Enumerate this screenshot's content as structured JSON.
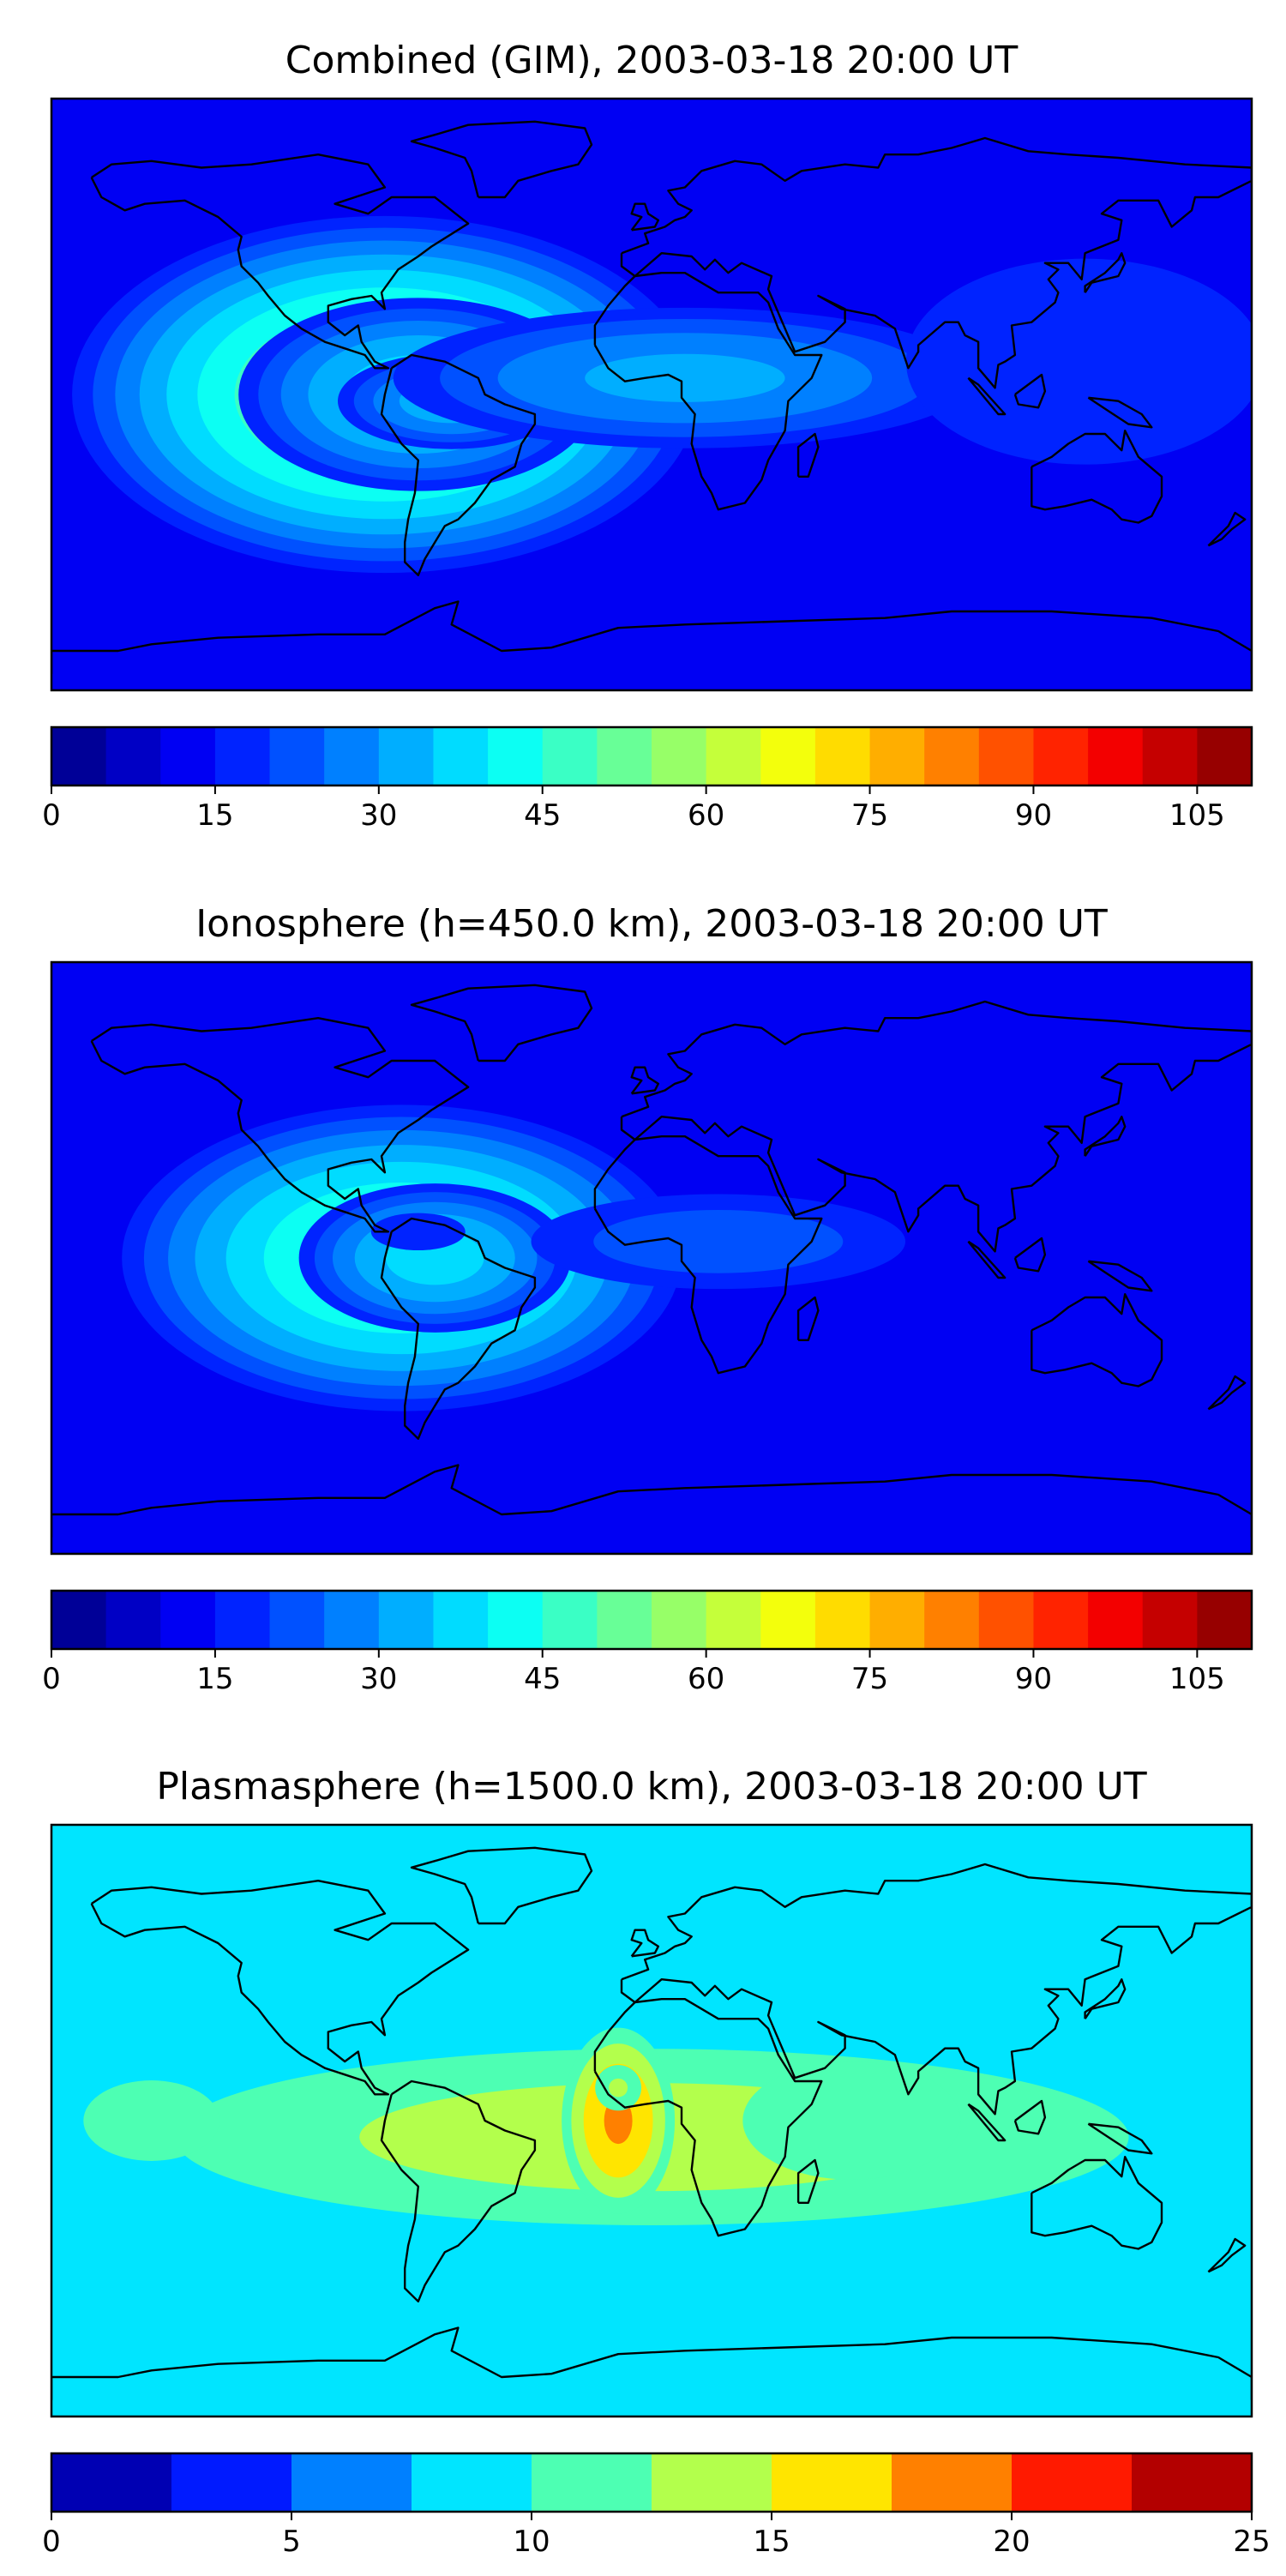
{
  "panels": [
    {
      "title": "Combined (GIM), 2003-03-18 20:00 UT",
      "colorbar": {
        "vmin": 0,
        "vmax": 110,
        "levels": 22,
        "ticks": [
          "0",
          "15",
          "30",
          "45",
          "60",
          "75",
          "90",
          "105"
        ]
      },
      "blobs": [
        {
          "lon": -80,
          "lat": 0,
          "rlon": 95,
          "rlat": 55,
          "value": 40
        },
        {
          "lon": -70,
          "lat": 0,
          "rlon": 55,
          "rlat": 30,
          "value": 25
        },
        {
          "lon": -60,
          "lat": -2,
          "rlon": 35,
          "rlat": 15,
          "value": 20
        },
        {
          "lon": 10,
          "lat": 5,
          "rlon": 90,
          "rlat": 22,
          "value": 18
        },
        {
          "lon": 130,
          "lat": 10,
          "rlon": 60,
          "rlat": 35,
          "value": 5
        }
      ],
      "background": 14
    },
    {
      "title": "Ionosphere  (h=450.0 km), 2003-03-18 20:00 UT",
      "colorbar": {
        "vmin": 0,
        "vmax": 110,
        "levels": 22,
        "ticks": [
          "0",
          "15",
          "30",
          "45",
          "60",
          "75",
          "90",
          "105"
        ]
      },
      "blobs": [
        {
          "lon": -75,
          "lat": 0,
          "rlon": 90,
          "rlat": 50,
          "value": 38
        },
        {
          "lon": -65,
          "lat": 0,
          "rlon": 45,
          "rlat": 25,
          "value": 28
        },
        {
          "lon": -70,
          "lat": 8,
          "rlon": 20,
          "rlat": 8,
          "value": 10
        },
        {
          "lon": 20,
          "lat": 5,
          "rlon": 70,
          "rlat": 18,
          "value": 14
        }
      ],
      "background": 10
    },
    {
      "title": "Plasmasphere (h=1500.0 km), 2003-03-18 20:00 UT",
      "colorbar": {
        "vmin": 0,
        "vmax": 25,
        "levels": 10,
        "ticks": [
          "0",
          "5",
          "10",
          "15",
          "20",
          "25"
        ]
      },
      "blobs": [
        {
          "lon": 0,
          "lat": -5,
          "rlon": 160,
          "rlat": 30,
          "value": 5
        },
        {
          "lon": -10,
          "lat": 0,
          "rlon": 18,
          "rlat": 30,
          "value": 9
        },
        {
          "lon": -10,
          "lat": 10,
          "rlon": 8,
          "rlat": 8,
          "value": 4
        },
        {
          "lon": 60,
          "lat": 0,
          "rlon": 40,
          "rlat": 22,
          "value": 3
        },
        {
          "lon": -150,
          "lat": 0,
          "rlon": 25,
          "rlat": 15,
          "value": 3
        }
      ],
      "background": 9
    }
  ]
}
